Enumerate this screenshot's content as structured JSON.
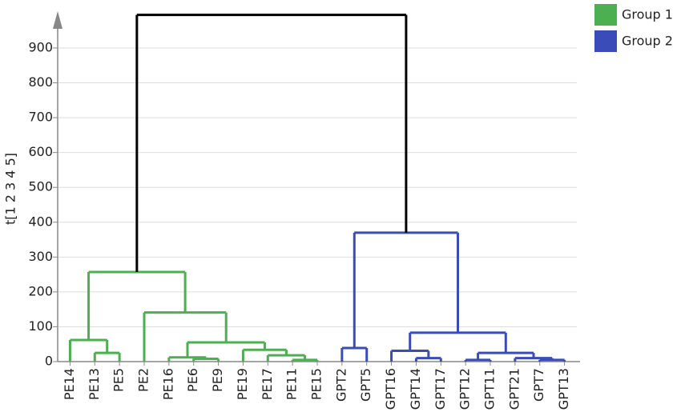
{
  "chart_data": {
    "type": "dendrogram",
    "ylabel": "t[1 2 3 4 5]",
    "ylim": [
      0,
      1000
    ],
    "yticks": [
      0,
      100,
      200,
      300,
      400,
      500,
      600,
      700,
      800,
      900
    ],
    "grid": true,
    "tree": {
      "height": 995,
      "color": "#000000",
      "children": [
        {
          "name": "Group 1",
          "color": "#4caf50",
          "height": 257,
          "children": [
            {
              "height": 62,
              "children": [
                {
                  "label": "PE14"
                },
                {
                  "height": 25,
                  "children": [
                    {
                      "label": "PE13"
                    },
                    {
                      "label": "PE5"
                    }
                  ]
                }
              ]
            },
            {
              "height": 141,
              "children": [
                {
                  "label": "PE2"
                },
                {
                  "height": 55,
                  "children": [
                    {
                      "height": 12,
                      "children": [
                        {
                          "label": "PE16"
                        },
                        {
                          "height": 8,
                          "children": [
                            {
                              "label": "PE6"
                            },
                            {
                              "label": "PE9"
                            }
                          ]
                        }
                      ]
                    },
                    {
                      "height": 34,
                      "children": [
                        {
                          "label": "PE19"
                        },
                        {
                          "height": 18,
                          "children": [
                            {
                              "label": "PE17"
                            },
                            {
                              "height": 5,
                              "children": [
                                {
                                  "label": "PE11"
                                },
                                {
                                  "label": "PE15"
                                }
                              ]
                            }
                          ]
                        }
                      ]
                    }
                  ]
                }
              ]
            }
          ]
        },
        {
          "name": "Group 2",
          "color": "#3a4cb8",
          "height": 370,
          "children": [
            {
              "height": 39,
              "children": [
                {
                  "label": "GPT2"
                },
                {
                  "label": "GPT5"
                }
              ]
            },
            {
              "height": 83,
              "children": [
                {
                  "height": 31,
                  "children": [
                    {
                      "label": "GPT16"
                    },
                    {
                      "height": 10,
                      "children": [
                        {
                          "label": "GPT14"
                        },
                        {
                          "label": "GPT17"
                        }
                      ]
                    }
                  ]
                },
                {
                  "height": 25,
                  "children": [
                    {
                      "height": 5,
                      "children": [
                        {
                          "label": "GPT12"
                        },
                        {
                          "label": "GPT11"
                        }
                      ]
                    },
                    {
                      "height": 10,
                      "children": [
                        {
                          "label": "GPT21"
                        },
                        {
                          "height": 5,
                          "children": [
                            {
                              "label": "GPT7"
                            },
                            {
                              "label": "GPT13"
                            }
                          ]
                        }
                      ]
                    }
                  ]
                }
              ]
            }
          ]
        }
      ]
    }
  }
}
